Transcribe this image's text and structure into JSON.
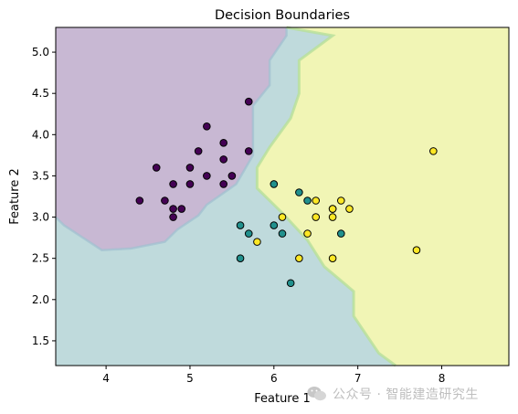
{
  "chart_data": {
    "type": "scatter",
    "title": "Decision Boundaries",
    "xlabel": "Feature 1",
    "ylabel": "Feature 2",
    "xlim": [
      3.4,
      8.8
    ],
    "ylim": [
      1.2,
      5.3
    ],
    "xticks": [
      4,
      5,
      6,
      7,
      8
    ],
    "yticks": [
      1.5,
      2.0,
      2.5,
      3.0,
      3.5,
      4.0,
      4.5,
      5.0
    ],
    "xtick_labels": [
      "4",
      "5",
      "6",
      "7",
      "8"
    ],
    "ytick_labels": [
      "1.5",
      "2.0",
      "2.5",
      "3.0",
      "3.5",
      "4.0",
      "4.5",
      "5.0"
    ],
    "grid": false,
    "legend": "none",
    "class_colors": [
      "#440154",
      "#21908d",
      "#fde725"
    ],
    "region_colors": [
      "#c8b8d3",
      "#bfdadc",
      "#f1f5b5"
    ],
    "boundary_colors": [
      "#7fbfb0",
      "#b8e09a",
      "#9fc0d0"
    ],
    "series": [
      {
        "class": 0,
        "points": [
          [
            4.4,
            3.2
          ],
          [
            4.6,
            3.6
          ],
          [
            4.7,
            3.2
          ],
          [
            4.8,
            3.4
          ],
          [
            4.8,
            3.1
          ],
          [
            4.8,
            3.0
          ],
          [
            4.9,
            3.1
          ],
          [
            5.0,
            3.6
          ],
          [
            5.0,
            3.4
          ],
          [
            5.1,
            3.8
          ],
          [
            5.2,
            4.1
          ],
          [
            5.2,
            3.5
          ],
          [
            5.4,
            3.9
          ],
          [
            5.4,
            3.7
          ],
          [
            5.4,
            3.4
          ],
          [
            5.5,
            3.5
          ],
          [
            5.7,
            4.4
          ],
          [
            5.7,
            3.8
          ]
        ]
      },
      {
        "class": 1,
        "points": [
          [
            5.6,
            2.9
          ],
          [
            5.6,
            2.5
          ],
          [
            5.7,
            2.8
          ],
          [
            6.0,
            3.4
          ],
          [
            6.0,
            2.9
          ],
          [
            6.1,
            2.8
          ],
          [
            6.2,
            2.2
          ],
          [
            6.3,
            3.3
          ],
          [
            6.4,
            3.2
          ],
          [
            6.7,
            3.1
          ],
          [
            6.8,
            2.8
          ]
        ]
      },
      {
        "class": 2,
        "points": [
          [
            5.8,
            2.7
          ],
          [
            6.1,
            3.0
          ],
          [
            6.3,
            2.5
          ],
          [
            6.4,
            2.8
          ],
          [
            6.5,
            3.2
          ],
          [
            6.5,
            3.0
          ],
          [
            6.7,
            3.1
          ],
          [
            6.7,
            3.0
          ],
          [
            6.7,
            2.5
          ],
          [
            6.8,
            3.2
          ],
          [
            6.9,
            3.1
          ],
          [
            7.7,
            2.6
          ],
          [
            7.9,
            3.8
          ]
        ]
      }
    ],
    "boundaries": {
      "class0_region": [
        [
          3.4,
          5.3
        ],
        [
          6.15,
          5.3
        ],
        [
          6.15,
          5.2
        ],
        [
          5.95,
          4.9
        ],
        [
          5.95,
          4.6
        ],
        [
          5.75,
          4.35
        ],
        [
          5.75,
          3.75
        ],
        [
          5.55,
          3.4
        ],
        [
          5.2,
          3.15
        ],
        [
          5.1,
          3.02
        ],
        [
          4.85,
          2.85
        ],
        [
          4.7,
          2.7
        ],
        [
          4.3,
          2.62
        ],
        [
          3.95,
          2.6
        ],
        [
          3.5,
          2.9
        ],
        [
          3.4,
          3.0
        ]
      ],
      "class2_region": [
        [
          6.15,
          5.3
        ],
        [
          8.8,
          5.3
        ],
        [
          8.8,
          1.2
        ],
        [
          7.45,
          1.2
        ],
        [
          7.25,
          1.35
        ],
        [
          6.95,
          1.8
        ],
        [
          6.95,
          2.1
        ],
        [
          6.6,
          2.4
        ],
        [
          6.4,
          2.72
        ],
        [
          6.1,
          3.05
        ],
        [
          5.8,
          3.35
        ],
        [
          5.8,
          3.6
        ],
        [
          5.95,
          3.85
        ],
        [
          6.2,
          4.2
        ],
        [
          6.3,
          4.5
        ],
        [
          6.3,
          4.9
        ],
        [
          6.7,
          5.2
        ]
      ]
    }
  },
  "watermark": {
    "text": "公众号 · 智能建造研究生"
  }
}
